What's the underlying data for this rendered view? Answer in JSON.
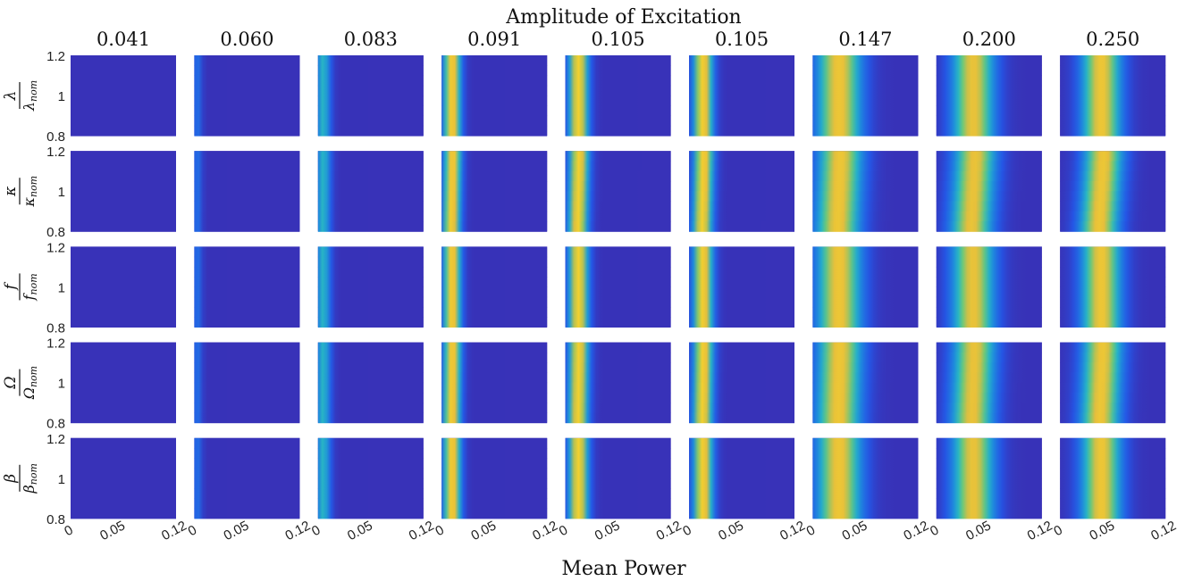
{
  "chart_data": {
    "type": "heatmap",
    "title": "Amplitude of Excitation",
    "xlabel": "Mean Power",
    "xlim": [
      0,
      0.12
    ],
    "x_ticks": [
      "0",
      "0.05",
      "0.12"
    ],
    "ylim": [
      0.8,
      1.2
    ],
    "y_ticks": [
      "0.8",
      "1",
      "1.2"
    ],
    "colormap": "parula",
    "colors": {
      "low": "#3e26a8",
      "mid": "#2fb6c4",
      "high": "#f9d92c"
    },
    "columns": [
      {
        "amplitude": "0.041",
        "peak_power": 0.0,
        "intensity": 0.05,
        "width": 0.0025
      },
      {
        "amplitude": "0.060",
        "peak_power": 0.003,
        "intensity": 0.3,
        "width": 0.004
      },
      {
        "amplitude": "0.083",
        "peak_power": 0.006,
        "intensity": 0.55,
        "width": 0.006
      },
      {
        "amplitude": "0.091",
        "peak_power": 0.012,
        "intensity": 0.95,
        "width": 0.007
      },
      {
        "amplitude": "0.105",
        "peak_power": 0.015,
        "intensity": 0.95,
        "width": 0.008
      },
      {
        "amplitude": "0.105",
        "peak_power": 0.016,
        "intensity": 0.95,
        "width": 0.008
      },
      {
        "amplitude": "0.147",
        "peak_power": 0.03,
        "intensity": 0.9,
        "width": 0.018
      },
      {
        "amplitude": "0.200",
        "peak_power": 0.042,
        "intensity": 0.88,
        "width": 0.017
      },
      {
        "amplitude": "0.250",
        "peak_power": 0.047,
        "intensity": 0.9,
        "width": 0.016
      }
    ],
    "rows": [
      {
        "parameter": "λ",
        "numerator": "λ",
        "denominator": "λ",
        "subscript": "nom",
        "slope": 0
      },
      {
        "parameter": "κ",
        "numerator": "κ",
        "denominator": "κ",
        "subscript": "nom",
        "slope": 0.1
      },
      {
        "parameter": "f",
        "numerator": "f",
        "denominator": "f",
        "subscript": "nom",
        "slope": 0
      },
      {
        "parameter": "Ω",
        "numerator": "Ω",
        "denominator": "Ω",
        "subscript": "nom",
        "slope": 0.06
      },
      {
        "parameter": "β",
        "numerator": "β",
        "denominator": "β",
        "subscript": "nom",
        "slope": 0
      }
    ]
  }
}
